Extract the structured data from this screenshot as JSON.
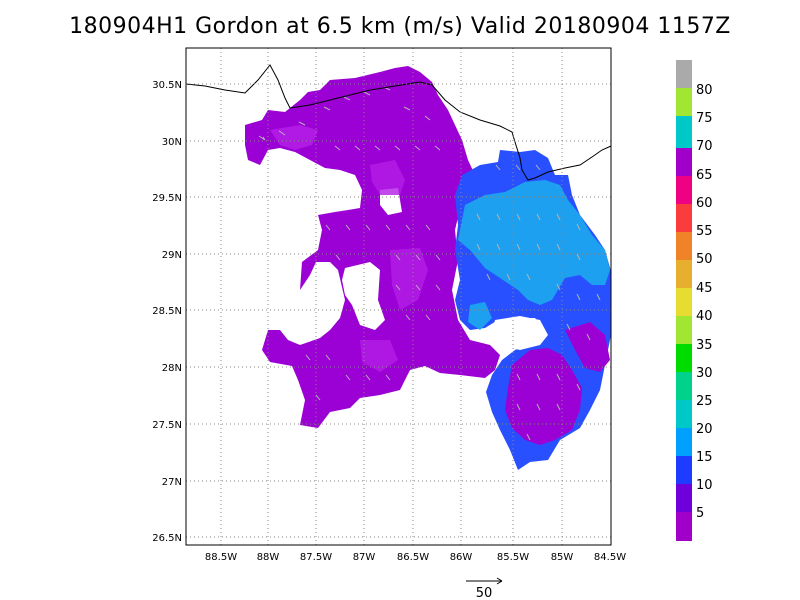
{
  "header": {
    "title": "180904H1 Gordon at 6.5 km (m/s) Valid 20180904 1157Z"
  },
  "axes": {
    "lat_labels": [
      "30.5N",
      "30N",
      "29.5N",
      "29N",
      "28.5N",
      "28N",
      "27.5N",
      "27N",
      "26.5N"
    ],
    "lat_values": [
      30.5,
      30,
      29.5,
      29,
      28.5,
      28,
      27.5,
      27,
      26.5
    ],
    "lon_labels": [
      "88.5W",
      "88W",
      "87.5W",
      "87W",
      "86.5W",
      "86W",
      "85.5W",
      "85W",
      "84.5W"
    ],
    "lon_values": [
      -88.5,
      -88,
      -87.5,
      -87,
      -86.5,
      -86,
      -85.5,
      -85,
      -84.5
    ],
    "lon_range": [
      -88.85,
      -84.5
    ],
    "lat_range": [
      26.4,
      30.85
    ],
    "grid": "dotted"
  },
  "colorbar": {
    "labels": [
      "5",
      "10",
      "15",
      "20",
      "25",
      "30",
      "35",
      "40",
      "45",
      "50",
      "55",
      "60",
      "65",
      "70",
      "75",
      "80"
    ],
    "colors": [
      "#a000c8",
      "#6e00dc",
      "#1e3cff",
      "#00a0ff",
      "#00c8c8",
      "#00d28c",
      "#00dc00",
      "#a0e632",
      "#e6dc32",
      "#e6af2d",
      "#f08228",
      "#fa3c3c",
      "#f00082",
      "#a000c8",
      "#00c8c8",
      "#a0e632",
      "#aaaaaa"
    ]
  },
  "reference_vector": {
    "label": "50"
  },
  "field": {
    "colors": {
      "purple": "#9b00d4",
      "violet": "#7a10dc",
      "blue": "#2850ff",
      "cyan": "#1ea0f0",
      "magenta": "#b41ee6"
    },
    "coast_color": "#000000",
    "vector_color": "#b4b4b4"
  }
}
